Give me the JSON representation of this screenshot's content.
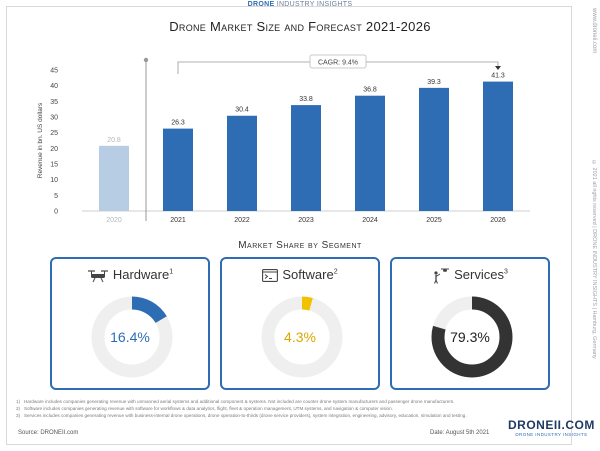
{
  "header": {
    "brand_bold": "DRONE",
    "brand_rest": " INDUSTRY INSIGHTS",
    "title": "Drone Market Size and Forecast 2021-2026",
    "side_url": "www.droneii.com",
    "side_copyright": "© 2021 all rights reserved | DRONE INDUSTRY INSIGHTS | Hamburg, Germany"
  },
  "chart_data": {
    "type": "bar",
    "categories": [
      "2020",
      "2021",
      "2022",
      "2023",
      "2024",
      "2025",
      "2026"
    ],
    "values": [
      20.8,
      26.3,
      30.4,
      33.8,
      36.8,
      39.3,
      41.3
    ],
    "value_labels": [
      "20.8",
      "26.3",
      "30.4",
      "33.8",
      "36.8",
      "39.3",
      "41.3"
    ],
    "ylabel": "Revenue in bn. US dollars",
    "xlabel": "",
    "ylim": [
      0,
      45
    ],
    "yticks": [
      "0",
      "5",
      "10",
      "15",
      "20",
      "25",
      "30",
      "35",
      "40",
      "45"
    ],
    "grid": false,
    "cagr_label": "CAGR: 9.4%",
    "colors": {
      "historic": "#b7cde3",
      "forecast": "#2e6db4",
      "historic_text": "#b0b8c0"
    }
  },
  "segments": {
    "title": "Market Share by Segment",
    "cards": [
      {
        "name": "Hardware",
        "sup": "1",
        "icon": "drone-icon",
        "share": 16.4,
        "label": "16.4%",
        "color": "#2e6db4"
      },
      {
        "name": "Software",
        "sup": "2",
        "icon": "terminal-icon",
        "share": 4.3,
        "label": "4.3%",
        "color": "#f2c200"
      },
      {
        "name": "Services",
        "sup": "3",
        "icon": "person-drone-icon",
        "share": 79.3,
        "label": "79.3%",
        "color": "#333333"
      }
    ],
    "track_color": "#efefef"
  },
  "footnotes": [
    {
      "num": "1)",
      "text": "Hardware includes companies generating revenue with unmanned aerial systems and additional component & systems. Not included are counter drone system manufacturers and passenger drone manufacturers."
    },
    {
      "num": "2)",
      "text": "Software includes companies generating revenue with software for workflows & data analytics, flight, fleet & operation management, UTM systems, and navigation & computer vision."
    },
    {
      "num": "3)",
      "text": "Services includes companies generating revenue with business-internal drone operations, drone operation-to-thirds (drone service providers), system integration, engineering, advisory, education, simulation and testing."
    }
  ],
  "footer": {
    "source": "Source: DRONEII.com",
    "date": "Date: August 5th 2021",
    "logo": "DRONEII.COM",
    "logo_sub": "DRONE INDUSTRY INSIGHTS"
  }
}
